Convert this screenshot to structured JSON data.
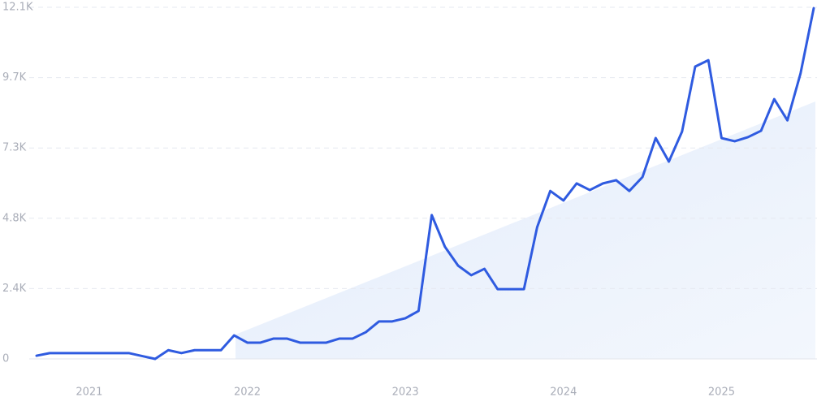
{
  "chart_data": {
    "type": "line",
    "categories": [
      null,
      null,
      null,
      null,
      "2021",
      null,
      null,
      null,
      null,
      null,
      null,
      null,
      null,
      null,
      null,
      null,
      "2022",
      null,
      null,
      null,
      null,
      null,
      null,
      null,
      null,
      null,
      null,
      null,
      "2023",
      null,
      null,
      null,
      null,
      null,
      null,
      null,
      null,
      null,
      null,
      null,
      "2024",
      null,
      null,
      null,
      null,
      null,
      null,
      null,
      null,
      null,
      null,
      null,
      "2025",
      null,
      null,
      null,
      null,
      null,
      null,
      null
    ],
    "series": [
      {
        "color": "#2f5be0",
        "values": [
          110,
          200,
          200,
          200,
          200,
          200,
          200,
          200,
          100,
          0,
          300,
          200,
          300,
          300,
          300,
          810,
          560,
          560,
          700,
          700,
          560,
          560,
          560,
          700,
          700,
          920,
          1290,
          1290,
          1400,
          1650,
          4950,
          3860,
          3210,
          2880,
          3100,
          2400,
          2400,
          2400,
          4530,
          5780,
          5450,
          6040,
          5810,
          6040,
          6150,
          5780,
          6260,
          7600,
          6790,
          7820,
          10060,
          10280,
          7600,
          7490,
          7630,
          7850,
          8940,
          8210,
          9830,
          12070
        ]
      }
    ],
    "ylim": [
      0,
      12100
    ],
    "yticks": [
      0,
      {
        "value": 2420,
        "label": "2.4K"
      },
      {
        "value": 4840,
        "label": "4.8K"
      },
      {
        "value": 7260,
        "label": "7.3K"
      },
      {
        "value": 9680,
        "label": "9.7K"
      },
      {
        "value": 12100,
        "label": "12.1K"
      }
    ],
    "grid": true
  }
}
